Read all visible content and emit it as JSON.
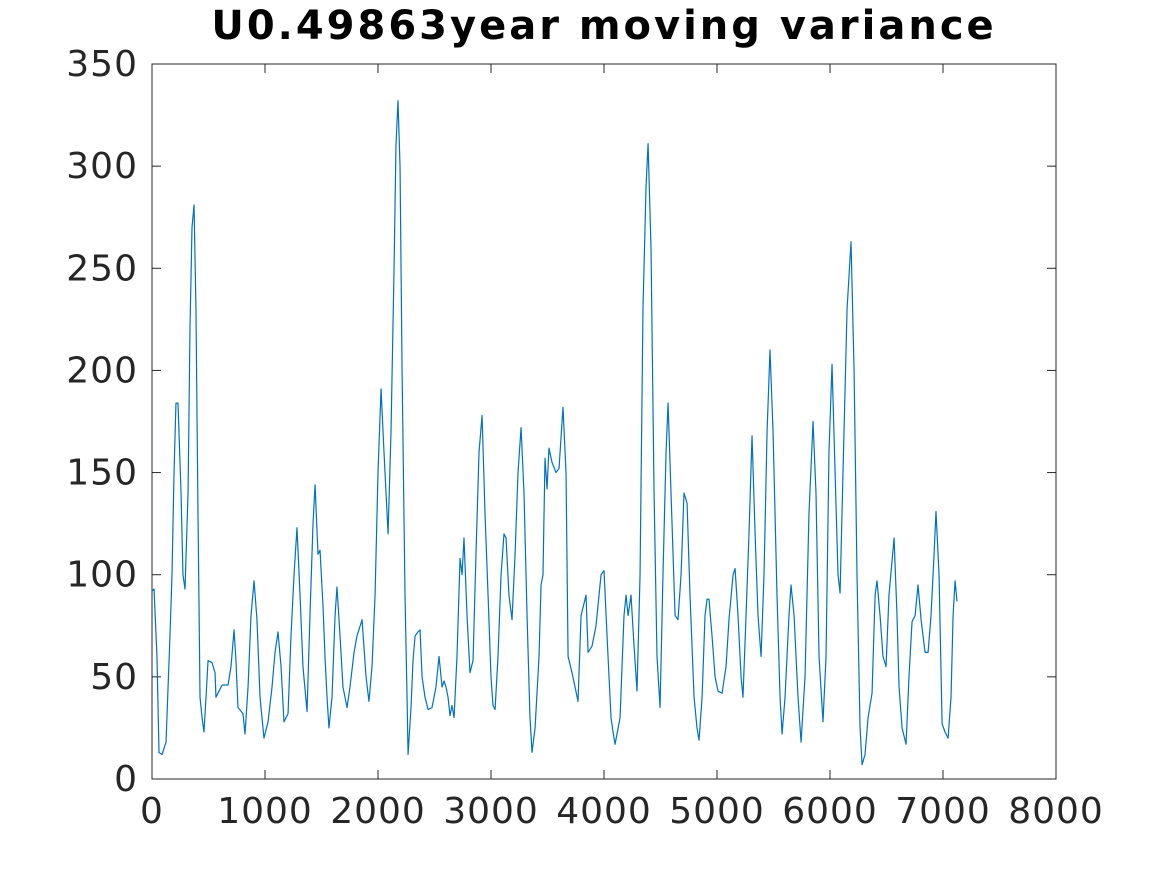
{
  "chart_data": {
    "type": "line",
    "title": "U0.49863year moving variance",
    "x": [
      0,
      18,
      44,
      62,
      89,
      124,
      159,
      177,
      195,
      212,
      230,
      257,
      274,
      292,
      319,
      336,
      354,
      372,
      389,
      407,
      425,
      443,
      460,
      478,
      496,
      531,
      558,
      566,
      584,
      620,
      673,
      699,
      726,
      743,
      761,
      805,
      823,
      850,
      876,
      903,
      929,
      956,
      991,
      1027,
      1062,
      1089,
      1115,
      1142,
      1168,
      1204,
      1230,
      1257,
      1283,
      1310,
      1336,
      1372,
      1398,
      1425,
      1443,
      1469,
      1487,
      1513,
      1531,
      1549,
      1566,
      1593,
      1620,
      1637,
      1664,
      1690,
      1726,
      1752,
      1788,
      1814,
      1859,
      1894,
      1920,
      1947,
      1974,
      2000,
      2027,
      2053,
      2089,
      2115,
      2142,
      2159,
      2177,
      2195,
      2213,
      2239,
      2257,
      2266,
      2292,
      2310,
      2328,
      2354,
      2372,
      2390,
      2416,
      2443,
      2478,
      2513,
      2540,
      2567,
      2584,
      2602,
      2620,
      2637,
      2655,
      2673,
      2699,
      2726,
      2744,
      2761,
      2788,
      2814,
      2841,
      2867,
      2894,
      2921,
      2947,
      2974,
      3000,
      3018,
      3036,
      3062,
      3089,
      3115,
      3133,
      3159,
      3186,
      3213,
      3239,
      3266,
      3292,
      3319,
      3345,
      3363,
      3390,
      3425,
      3443,
      3460,
      3478,
      3496,
      3513,
      3540,
      3575,
      3602,
      3637,
      3664,
      3682,
      3717,
      3744,
      3770,
      3797,
      3841,
      3859,
      3894,
      3929,
      3974,
      4000,
      4027,
      4062,
      4080,
      4098,
      4142,
      4177,
      4195,
      4213,
      4239,
      4266,
      4292,
      4319,
      4345,
      4372,
      4390,
      4416,
      4443,
      4469,
      4496,
      4522,
      4549,
      4567,
      4593,
      4629,
      4655,
      4682,
      4708,
      4735,
      4761,
      4797,
      4823,
      4841,
      4868,
      4894,
      4912,
      4929,
      4956,
      4983,
      5009,
      5045,
      5080,
      5106,
      5142,
      5160,
      5186,
      5213,
      5230,
      5257,
      5283,
      5310,
      5337,
      5363,
      5390,
      5416,
      5443,
      5469,
      5496,
      5531,
      5558,
      5576,
      5602,
      5637,
      5655,
      5682,
      5717,
      5744,
      5779,
      5814,
      5850,
      5876,
      5903,
      5938,
      5965,
      5991,
      6018,
      6045,
      6071,
      6089,
      6115,
      6151,
      6186,
      6213,
      6239,
      6266,
      6284,
      6310,
      6337,
      6372,
      6399,
      6416,
      6443,
      6469,
      6496,
      6522,
      6567,
      6593,
      6611,
      6638,
      6673,
      6699,
      6726,
      6753,
      6779,
      6806,
      6841,
      6868,
      6894,
      6921,
      6938,
      6965,
      6992,
      7018,
      7045,
      7071,
      7089,
      7107,
      7124
    ],
    "series": [
      {
        "color": "#0072bd",
        "values": [
          92,
          93,
          60,
          13,
          12,
          18,
          70,
          100,
          150,
          184,
          184,
          140,
          100,
          93,
          140,
          220,
          270,
          281,
          230,
          130,
          40,
          30,
          23,
          40,
          58,
          57,
          52,
          40,
          42,
          46,
          46,
          55,
          73,
          58,
          35,
          32,
          22,
          45,
          80,
          97,
          78,
          40,
          20,
          28,
          45,
          62,
          72,
          55,
          28,
          32,
          70,
          100,
          123,
          90,
          55,
          33,
          80,
          125,
          144,
          110,
          112,
          85,
          60,
          40,
          25,
          40,
          80,
          94,
          70,
          45,
          35,
          45,
          62,
          70,
          78,
          50,
          38,
          55,
          90,
          150,
          191,
          160,
          120,
          170,
          250,
          310,
          332,
          300,
          200,
          90,
          40,
          12,
          35,
          58,
          70,
          72,
          73,
          50,
          40,
          34,
          35,
          45,
          60,
          45,
          48,
          45,
          40,
          31,
          36,
          30,
          60,
          108,
          100,
          118,
          80,
          52,
          58,
          110,
          160,
          178,
          130,
          90,
          50,
          36,
          34,
          60,
          100,
          120,
          118,
          90,
          78,
          110,
          150,
          172,
          140,
          80,
          30,
          13,
          25,
          60,
          95,
          100,
          157,
          142,
          162,
          155,
          150,
          152,
          182,
          150,
          60,
          52,
          45,
          38,
          80,
          90,
          62,
          65,
          75,
          100,
          102,
          70,
          30,
          23,
          17,
          30,
          80,
          90,
          80,
          90,
          65,
          43,
          100,
          230,
          290,
          311,
          260,
          140,
          60,
          35,
          100,
          160,
          184,
          140,
          80,
          78,
          100,
          140,
          135,
          90,
          40,
          25,
          19,
          40,
          80,
          88,
          88,
          70,
          50,
          43,
          42,
          55,
          78,
          100,
          103,
          80,
          50,
          40,
          80,
          120,
          168,
          120,
          80,
          60,
          100,
          170,
          210,
          170,
          90,
          40,
          22,
          40,
          80,
          95,
          80,
          40,
          18,
          50,
          130,
          175,
          140,
          60,
          28,
          60,
          160,
          203,
          150,
          100,
          91,
          150,
          230,
          263,
          200,
          100,
          25,
          7,
          12,
          30,
          42,
          90,
          97,
          80,
          60,
          55,
          90,
          118,
          80,
          45,
          25,
          17,
          50,
          77,
          80,
          95,
          78,
          62,
          62,
          80,
          110,
          131,
          100,
          27,
          23,
          20,
          40,
          80,
          97,
          87
        ]
      }
    ],
    "xlim": [
      0,
      8000
    ],
    "xticks": [
      0,
      1000,
      2000,
      3000,
      4000,
      5000,
      6000,
      7000,
      8000
    ],
    "ylim": [
      0,
      350
    ],
    "yticks": [
      0,
      50,
      100,
      150,
      200,
      250,
      300,
      350
    ],
    "grid": false
  }
}
